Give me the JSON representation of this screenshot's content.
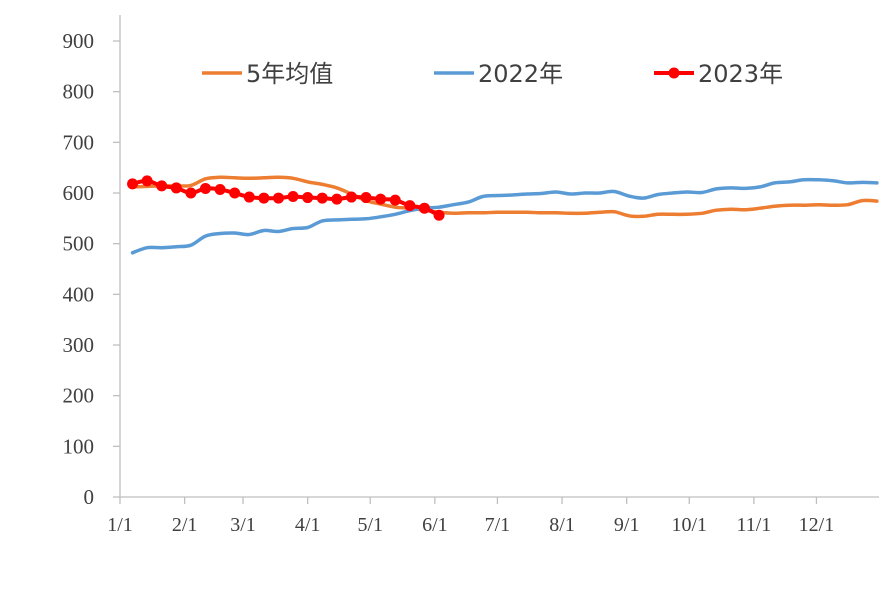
{
  "chart_data": {
    "type": "line",
    "ylim": [
      0,
      900
    ],
    "yticks": [
      "0",
      "100",
      "200",
      "300",
      "400",
      "500",
      "600",
      "700",
      "800",
      "900"
    ],
    "xlim": [
      1,
      365
    ],
    "xticks": [
      {
        "label": "1/1",
        "day": 1
      },
      {
        "label": "2/1",
        "day": 32
      },
      {
        "label": "3/1",
        "day": 60
      },
      {
        "label": "4/1",
        "day": 91
      },
      {
        "label": "5/1",
        "day": 121
      },
      {
        "label": "6/1",
        "day": 152
      },
      {
        "label": "7/1",
        "day": 182
      },
      {
        "label": "8/1",
        "day": 213
      },
      {
        "label": "9/1",
        "day": 244
      },
      {
        "label": "10/1",
        "day": 274
      },
      {
        "label": "11/1",
        "day": 305
      },
      {
        "label": "12/1",
        "day": 335
      }
    ],
    "legend_position": "top",
    "grid": false,
    "series": [
      {
        "name": "5年均值",
        "color": "#ED7D31",
        "markers": false,
        "points": [
          [
            7,
            612
          ],
          [
            14,
            613
          ],
          [
            21,
            614
          ],
          [
            28,
            614
          ],
          [
            35,
            615
          ],
          [
            42,
            628
          ],
          [
            49,
            631
          ],
          [
            56,
            630
          ],
          [
            63,
            629
          ],
          [
            70,
            630
          ],
          [
            77,
            631
          ],
          [
            84,
            629
          ],
          [
            91,
            622
          ],
          [
            98,
            617
          ],
          [
            105,
            610
          ],
          [
            112,
            598
          ],
          [
            119,
            585
          ],
          [
            126,
            578
          ],
          [
            133,
            572
          ],
          [
            140,
            570
          ],
          [
            147,
            566
          ],
          [
            154,
            562
          ],
          [
            161,
            560
          ],
          [
            168,
            561
          ],
          [
            175,
            561
          ],
          [
            182,
            562
          ],
          [
            189,
            562
          ],
          [
            196,
            562
          ],
          [
            203,
            561
          ],
          [
            210,
            561
          ],
          [
            217,
            560
          ],
          [
            224,
            560
          ],
          [
            231,
            562
          ],
          [
            238,
            563
          ],
          [
            245,
            555
          ],
          [
            252,
            554
          ],
          [
            259,
            558
          ],
          [
            266,
            558
          ],
          [
            273,
            558
          ],
          [
            280,
            560
          ],
          [
            287,
            566
          ],
          [
            294,
            568
          ],
          [
            301,
            567
          ],
          [
            308,
            570
          ],
          [
            315,
            574
          ],
          [
            322,
            576
          ],
          [
            329,
            576
          ],
          [
            336,
            577
          ],
          [
            343,
            576
          ],
          [
            350,
            577
          ],
          [
            357,
            585
          ],
          [
            364,
            584
          ]
        ]
      },
      {
        "name": "2022年",
        "color": "#5B9BD5",
        "markers": false,
        "points": [
          [
            7,
            482
          ],
          [
            14,
            492
          ],
          [
            21,
            492
          ],
          [
            28,
            494
          ],
          [
            35,
            497
          ],
          [
            42,
            515
          ],
          [
            49,
            520
          ],
          [
            56,
            521
          ],
          [
            63,
            518
          ],
          [
            70,
            526
          ],
          [
            77,
            524
          ],
          [
            84,
            530
          ],
          [
            91,
            532
          ],
          [
            98,
            545
          ],
          [
            105,
            547
          ],
          [
            112,
            548
          ],
          [
            119,
            549
          ],
          [
            126,
            553
          ],
          [
            133,
            558
          ],
          [
            140,
            565
          ],
          [
            147,
            570
          ],
          [
            154,
            572
          ],
          [
            161,
            577
          ],
          [
            168,
            582
          ],
          [
            175,
            593
          ],
          [
            182,
            595
          ],
          [
            189,
            596
          ],
          [
            196,
            598
          ],
          [
            203,
            599
          ],
          [
            210,
            602
          ],
          [
            217,
            598
          ],
          [
            224,
            600
          ],
          [
            231,
            600
          ],
          [
            238,
            603
          ],
          [
            245,
            594
          ],
          [
            252,
            590
          ],
          [
            259,
            597
          ],
          [
            266,
            600
          ],
          [
            273,
            602
          ],
          [
            280,
            601
          ],
          [
            287,
            608
          ],
          [
            294,
            610
          ],
          [
            301,
            609
          ],
          [
            308,
            612
          ],
          [
            315,
            620
          ],
          [
            322,
            622
          ],
          [
            329,
            626
          ],
          [
            336,
            626
          ],
          [
            343,
            624
          ],
          [
            350,
            620
          ],
          [
            357,
            621
          ],
          [
            364,
            620
          ]
        ]
      },
      {
        "name": "2023年",
        "color": "#FF0000",
        "markers": true,
        "points": [
          [
            7,
            618
          ],
          [
            14,
            624
          ],
          [
            21,
            614
          ],
          [
            28,
            610
          ],
          [
            35,
            600
          ],
          [
            42,
            609
          ],
          [
            49,
            607
          ],
          [
            56,
            600
          ],
          [
            63,
            592
          ],
          [
            70,
            590
          ],
          [
            77,
            590
          ],
          [
            84,
            593
          ],
          [
            91,
            591
          ],
          [
            98,
            590
          ],
          [
            105,
            588
          ],
          [
            112,
            592
          ],
          [
            119,
            591
          ],
          [
            126,
            588
          ],
          [
            133,
            586
          ],
          [
            140,
            575
          ],
          [
            147,
            570
          ],
          [
            154,
            556
          ]
        ]
      }
    ]
  }
}
